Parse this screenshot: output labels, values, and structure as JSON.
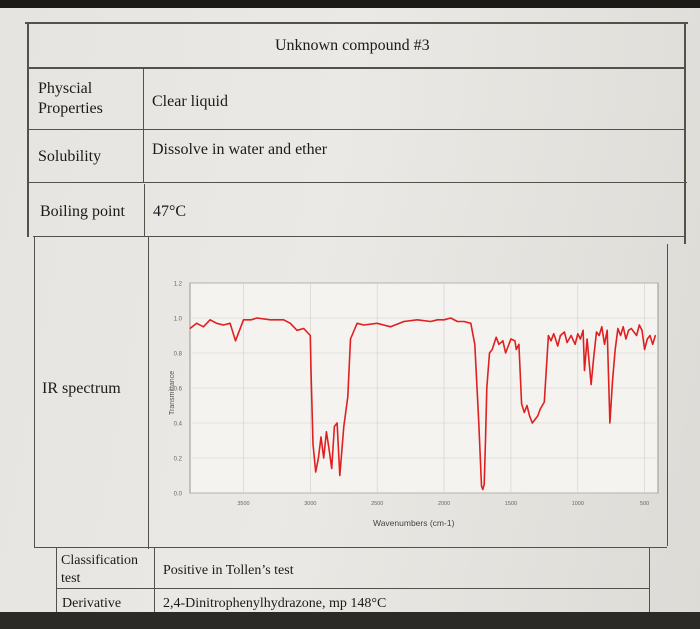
{
  "title": "Unknown compound #3",
  "rows": {
    "physical": {
      "label_line1": "Physcial",
      "label_line2": "Properties",
      "value": "Clear liquid"
    },
    "solubility": {
      "label": "Solubility",
      "value": "Dissolve in water and ether"
    },
    "boiling": {
      "label": "Boiling point",
      "value": "47°C"
    },
    "ir": {
      "label": "IR spectrum"
    },
    "classification": {
      "label_line1": "Classification",
      "label_line2": "test",
      "value": "Positive in Tollen’s test"
    },
    "derivative": {
      "label": "Derivative",
      "value": "2,4-Dinitrophenylhydrazone, mp  148°C"
    }
  },
  "chart_data": {
    "type": "line",
    "title": "",
    "xlabel": "Wavenumbers (cm-1)",
    "ylabel": "Transmittance",
    "xlim": [
      3900,
      400
    ],
    "ylim": [
      0,
      1.2
    ],
    "x_ticks": [
      3500,
      3000,
      2500,
      2000,
      1500,
      1000,
      500
    ],
    "x_tick_labels": [
      "3500",
      "3000",
      "2500",
      "2000",
      "1500",
      "1000",
      "500"
    ],
    "y_ticks": [
      0.0,
      0.2,
      0.4,
      0.6,
      0.8,
      1.0,
      1.2
    ],
    "y_tick_labels": [
      "0.0",
      "0.2",
      "0.4",
      "0.6",
      "0.8",
      "1.0",
      "1.2"
    ],
    "grid": true,
    "line_color": "#e02020",
    "series": [
      {
        "x": [
          3900,
          3850,
          3800,
          3750,
          3700,
          3650,
          3600,
          3560,
          3500,
          3440,
          3400,
          3300,
          3200,
          3150,
          3100,
          3050,
          3000,
          2995,
          2980,
          2960,
          2940,
          2920,
          2900,
          2880,
          2860,
          2840,
          2820,
          2800,
          2780,
          2750,
          2720,
          2700,
          2650,
          2600,
          2500,
          2400,
          2300,
          2200,
          2100,
          2050,
          2000,
          1950,
          1900,
          1850,
          1800,
          1770,
          1740,
          1720,
          1710,
          1700,
          1690,
          1680,
          1660,
          1640,
          1610,
          1590,
          1560,
          1540,
          1500,
          1470,
          1460,
          1440,
          1420,
          1400,
          1380,
          1360,
          1340,
          1300,
          1280,
          1250,
          1220,
          1200,
          1180,
          1170,
          1150,
          1130,
          1100,
          1080,
          1050,
          1020,
          1000,
          980,
          960,
          950,
          930,
          900,
          880,
          860,
          840,
          820,
          800,
          780,
          760,
          740,
          720,
          700,
          680,
          660,
          640,
          620,
          600,
          580,
          560,
          540,
          520,
          500,
          480,
          460,
          440,
          420
        ],
        "y": [
          0.94,
          0.97,
          0.95,
          0.99,
          0.97,
          0.96,
          0.97,
          0.87,
          0.99,
          0.99,
          1.0,
          0.99,
          0.99,
          0.97,
          0.93,
          0.94,
          0.9,
          0.7,
          0.28,
          0.12,
          0.2,
          0.32,
          0.2,
          0.35,
          0.25,
          0.14,
          0.38,
          0.4,
          0.1,
          0.38,
          0.55,
          0.88,
          0.97,
          0.96,
          0.97,
          0.95,
          0.98,
          0.99,
          0.98,
          0.99,
          0.99,
          1.0,
          0.98,
          0.98,
          0.97,
          0.85,
          0.4,
          0.04,
          0.02,
          0.05,
          0.3,
          0.6,
          0.8,
          0.82,
          0.89,
          0.85,
          0.87,
          0.8,
          0.88,
          0.87,
          0.82,
          0.85,
          0.51,
          0.46,
          0.5,
          0.44,
          0.4,
          0.44,
          0.48,
          0.52,
          0.9,
          0.87,
          0.91,
          0.89,
          0.84,
          0.9,
          0.92,
          0.86,
          0.9,
          0.85,
          0.91,
          0.88,
          0.93,
          0.7,
          0.88,
          0.62,
          0.78,
          0.92,
          0.9,
          0.95,
          0.85,
          0.93,
          0.4,
          0.64,
          0.82,
          0.94,
          0.9,
          0.95,
          0.88,
          0.93,
          0.94,
          0.92,
          0.9,
          0.96,
          0.93,
          0.82,
          0.88,
          0.9,
          0.85,
          0.9
        ]
      }
    ]
  }
}
